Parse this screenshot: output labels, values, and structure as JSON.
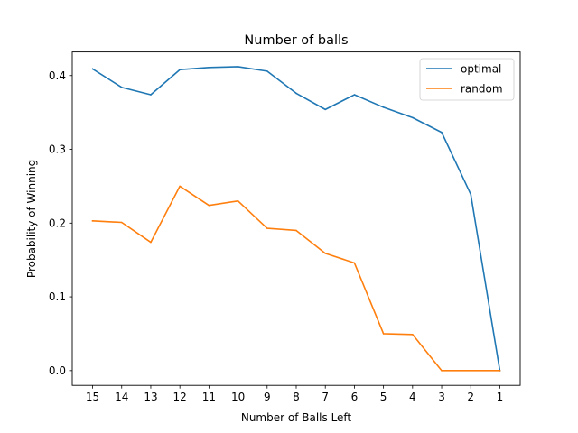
{
  "chart_data": {
    "type": "line",
    "title": "Number of balls",
    "xlabel": "Number of Balls Left",
    "ylabel": "Probability of Winning",
    "x": [
      15,
      14,
      13,
      12,
      11,
      10,
      9,
      8,
      7,
      6,
      5,
      4,
      3,
      2,
      1
    ],
    "x_tick_labels": [
      "15",
      "14",
      "13",
      "12",
      "11",
      "10",
      "9",
      "8",
      "7",
      "6",
      "5",
      "4",
      "3",
      "2",
      "1"
    ],
    "x_axis_reversed": true,
    "y_ticks": [
      0.0,
      0.1,
      0.2,
      0.3,
      0.4
    ],
    "y_tick_labels": [
      "0.0",
      "0.1",
      "0.2",
      "0.3",
      "0.4"
    ],
    "ylim": [
      -0.02,
      0.432
    ],
    "grid": false,
    "legend_position": "top-right",
    "series": [
      {
        "name": "optimal",
        "color": "#1f77b4",
        "values": [
          0.409,
          0.384,
          0.374,
          0.408,
          0.411,
          0.412,
          0.406,
          0.376,
          0.354,
          0.374,
          0.357,
          0.343,
          0.323,
          0.239,
          0.0
        ]
      },
      {
        "name": "random",
        "color": "#ff7f0e",
        "values": [
          0.203,
          0.201,
          0.174,
          0.25,
          0.224,
          0.23,
          0.193,
          0.19,
          0.159,
          0.146,
          0.05,
          0.049,
          0.0,
          0.0,
          0.0
        ]
      }
    ]
  }
}
